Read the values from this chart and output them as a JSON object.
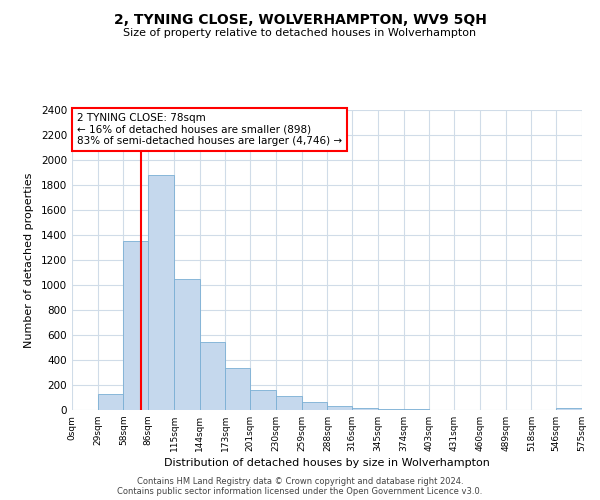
{
  "title": "2, TYNING CLOSE, WOLVERHAMPTON, WV9 5QH",
  "subtitle": "Size of property relative to detached houses in Wolverhampton",
  "xlabel": "Distribution of detached houses by size in Wolverhampton",
  "ylabel": "Number of detached properties",
  "bar_color": "#c5d8ed",
  "bar_edge_color": "#7aafd4",
  "annotation_title": "2 TYNING CLOSE: 78sqm",
  "annotation_line1": "← 16% of detached houses are smaller (898)",
  "annotation_line2": "83% of semi-detached houses are larger (4,746) →",
  "property_line_x": 78,
  "bins": [
    0,
    29,
    58,
    86,
    115,
    144,
    173,
    201,
    230,
    259,
    288,
    316,
    345,
    374,
    403,
    431,
    460,
    489,
    518,
    546,
    575
  ],
  "counts": [
    0,
    125,
    1350,
    1880,
    1045,
    545,
    335,
    160,
    110,
    65,
    35,
    20,
    10,
    5,
    3,
    2,
    1,
    0,
    0,
    15
  ],
  "tick_labels": [
    "0sqm",
    "29sqm",
    "58sqm",
    "86sqm",
    "115sqm",
    "144sqm",
    "173sqm",
    "201sqm",
    "230sqm",
    "259sqm",
    "288sqm",
    "316sqm",
    "345sqm",
    "374sqm",
    "403sqm",
    "431sqm",
    "460sqm",
    "489sqm",
    "518sqm",
    "546sqm",
    "575sqm"
  ],
  "ylim": [
    0,
    2400
  ],
  "yticks": [
    0,
    200,
    400,
    600,
    800,
    1000,
    1200,
    1400,
    1600,
    1800,
    2000,
    2200,
    2400
  ],
  "footer1": "Contains HM Land Registry data © Crown copyright and database right 2024.",
  "footer2": "Contains public sector information licensed under the Open Government Licence v3.0.",
  "bg_color": "#ffffff",
  "grid_color": "#d0dce8"
}
